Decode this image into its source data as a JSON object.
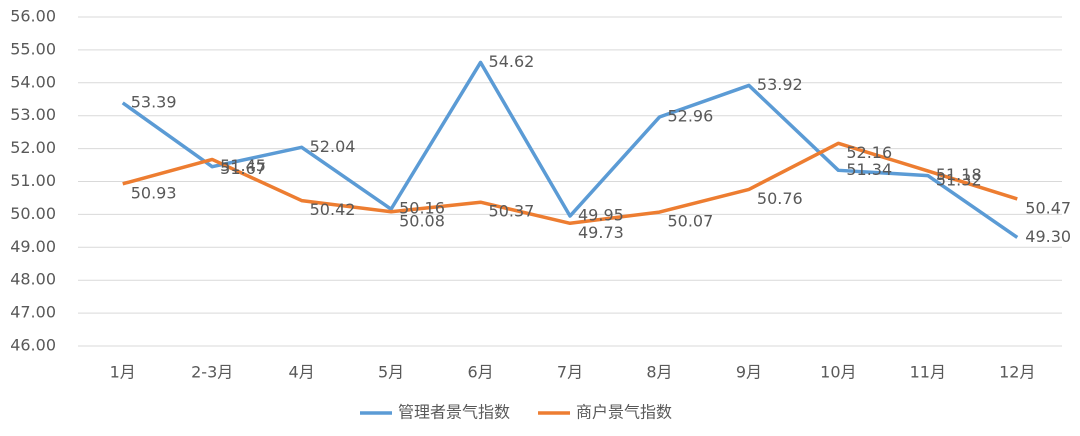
{
  "chart_data": {
    "type": "line",
    "categories": [
      "1月",
      "2-3月",
      "4月",
      "5月",
      "6月",
      "7月",
      "8月",
      "9月",
      "10月",
      "11月",
      "12月"
    ],
    "series": [
      {
        "name": "管理者景气指数",
        "color": "#5b9bd5",
        "label_color": "#2f5f97",
        "values": [
          53.39,
          51.45,
          52.04,
          50.16,
          54.62,
          49.95,
          52.96,
          53.92,
          51.34,
          51.18,
          49.3
        ],
        "value_labels": [
          "53.39",
          "51.45",
          "52.04",
          "50.16",
          "54.62",
          "49.95",
          "52.96",
          "53.92",
          "51.34",
          "51.18",
          "49.30"
        ]
      },
      {
        "name": "商户景气指数",
        "color": "#ed7d31",
        "label_color": "#c00000",
        "values": [
          50.93,
          51.67,
          50.42,
          50.08,
          50.37,
          49.73,
          50.07,
          50.76,
          52.16,
          51.32,
          50.47
        ],
        "value_labels": [
          "50.93",
          "51.67",
          "50.42",
          "50.08",
          "50.37",
          "49.73",
          "50.07",
          "50.76",
          "52.16",
          "51.32",
          "50.47"
        ]
      }
    ],
    "ylim": [
      46,
      56
    ],
    "yticks": [
      {
        "value": 46,
        "label": "46.00"
      },
      {
        "value": 47,
        "label": "47.00"
      },
      {
        "value": 48,
        "label": "48.00"
      },
      {
        "value": 49,
        "label": "49.00"
      },
      {
        "value": 50,
        "label": "50.00"
      },
      {
        "value": 51,
        "label": "51.00"
      },
      {
        "value": 52,
        "label": "52.00"
      },
      {
        "value": 53,
        "label": "53.00"
      },
      {
        "value": 54,
        "label": "54.00"
      },
      {
        "value": 55,
        "label": "55.00"
      },
      {
        "value": 56,
        "label": "56.00"
      }
    ],
    "grid": true,
    "legend": "bottom"
  }
}
